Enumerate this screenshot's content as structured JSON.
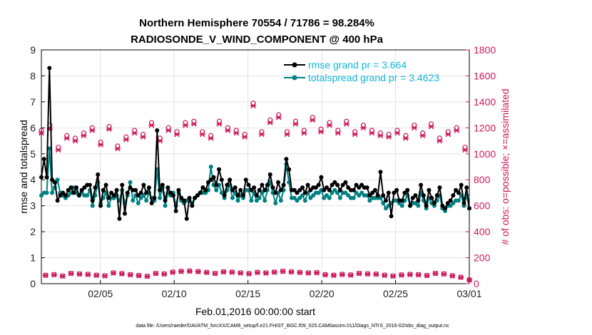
{
  "chart_data": {
    "type": "line",
    "title": "Northern Hemisphere 70554 / 71786 = 98.284%",
    "subtitle": "RADIOSONDE_V_WIND_COMPONENT @ 400 hPa",
    "xlabel": "Feb.01,2016 00:00:00 start",
    "ylabel": "rmse and totalspread",
    "ylabel_right": "# of obs: o=possible; ×=assimilated",
    "footnote": "data file: /Users/raeder/DAI/ATM_forcXX/CAM6_setup/f.e21.FHIST_BGC.f09_025.CAM6assim.011/Diags_NTrS_2016-02/obs_diag_output.nc",
    "x_unit": "day of February 2016 (1 = Feb 01)",
    "xlim": [
      1,
      30
    ],
    "ylim": [
      0,
      9
    ],
    "ylim_right": [
      0,
      1800
    ],
    "x_ticks": [
      5,
      10,
      15,
      20,
      25,
      30
    ],
    "x_tick_labels": [
      "02/05",
      "02/10",
      "02/15",
      "02/20",
      "02/25",
      "03/01"
    ],
    "y_ticks": [
      0,
      1,
      2,
      3,
      4,
      5,
      6,
      7,
      8,
      9
    ],
    "y_ticks_right": [
      0,
      200,
      400,
      600,
      800,
      1000,
      1200,
      1400,
      1600,
      1800
    ],
    "grid": true,
    "legend_position": "top-right",
    "series": [
      {
        "name": "rmse grand pr = 3.664",
        "color": "#000000",
        "axis": "left",
        "values": [
          4.1,
          4.8,
          4.1,
          8.3,
          4.0,
          3.9,
          3.2,
          3.4,
          3.5,
          3.4,
          3.6,
          3.7,
          3.5,
          3.7,
          3.4,
          3.6,
          3.7,
          3.8,
          3.8,
          3.2,
          3.7,
          4.2,
          3.0,
          3.6,
          3.8,
          3.3,
          3.5,
          3.4,
          3.6,
          2.5,
          3.8,
          2.7,
          3.5,
          3.7,
          3.6,
          3.6,
          3.4,
          3.5,
          3.8,
          3.5,
          3.7,
          3.1,
          3.3,
          5.9,
          3.6,
          3.8,
          3.2,
          3.7,
          3.5,
          3.4,
          2.8,
          3.6,
          3.3,
          3.2,
          2.5,
          3.3,
          3.0,
          3.3,
          3.4,
          3.5,
          3.7,
          3.6,
          3.9,
          4.0,
          4.1,
          3.8,
          4.4,
          4.0,
          3.4,
          3.8,
          4.0,
          3.6,
          3.7,
          3.4,
          3.6,
          3.4,
          4.0,
          3.8,
          3.6,
          3.7,
          3.4,
          3.6,
          3.8,
          3.6,
          3.8,
          4.2,
          3.7,
          3.5,
          3.9,
          3.6,
          3.8,
          4.8,
          4.4,
          3.6,
          3.6,
          3.5,
          3.6,
          3.7,
          3.5,
          3.8,
          3.6,
          3.7,
          3.7,
          3.8,
          4.1,
          3.6,
          3.7,
          3.6,
          3.8,
          3.9,
          3.8,
          3.6,
          3.8,
          3.9,
          3.7,
          3.6,
          3.6,
          3.8,
          3.7,
          3.8,
          3.7,
          3.7,
          3.4,
          3.5,
          3.6,
          3.4,
          4.3,
          3.4,
          3.2,
          3.5,
          2.6,
          3.5,
          3.6,
          3.2,
          3.2,
          3.5,
          3.6,
          3.0,
          3.3,
          3.4,
          3.2,
          3.8,
          3.4,
          3.0,
          3.6,
          3.3,
          3.1,
          3.4,
          3.7,
          3.0,
          2.9,
          3.1,
          3.2,
          3.4,
          3.6,
          3.5,
          3.8,
          3.1,
          3.7,
          2.9
        ]
      },
      {
        "name": "totalspread grand pr = 3.4623",
        "color": "#008080",
        "axis": "left",
        "values": [
          3.4,
          3.5,
          3.5,
          5.2,
          3.5,
          3.7,
          4.0,
          3.5,
          3.4,
          3.3,
          3.4,
          3.5,
          3.7,
          3.5,
          3.4,
          3.5,
          3.4,
          3.4,
          3.6,
          3.0,
          3.4,
          3.9,
          3.1,
          3.3,
          3.5,
          3.0,
          3.3,
          3.3,
          3.4,
          3.2,
          3.6,
          3.1,
          3.4,
          3.9,
          3.2,
          3.4,
          3.1,
          3.3,
          3.4,
          3.2,
          3.5,
          3.3,
          3.2,
          4.4,
          3.3,
          3.7,
          3.0,
          3.5,
          3.4,
          3.5,
          3.0,
          3.5,
          3.2,
          3.1,
          3.2,
          3.2,
          3.1,
          3.3,
          3.4,
          3.5,
          3.5,
          3.5,
          3.6,
          4.5,
          3.8,
          3.6,
          3.8,
          3.5,
          3.3,
          3.6,
          3.8,
          3.3,
          3.5,
          3.2,
          3.4,
          3.3,
          3.6,
          3.6,
          3.2,
          3.5,
          3.2,
          3.3,
          3.5,
          3.2,
          3.6,
          3.9,
          3.5,
          3.1,
          3.5,
          3.2,
          3.6,
          4.6,
          3.9,
          3.3,
          3.3,
          3.2,
          3.3,
          3.4,
          3.2,
          3.5,
          3.3,
          3.4,
          3.5,
          3.5,
          3.6,
          3.3,
          3.4,
          3.3,
          3.5,
          3.6,
          3.5,
          3.3,
          3.5,
          3.5,
          3.4,
          3.3,
          3.3,
          3.5,
          3.4,
          3.5,
          3.4,
          3.4,
          3.2,
          3.3,
          3.3,
          3.3,
          3.3,
          3.1,
          2.9,
          3.0,
          3.1,
          3.2,
          3.2,
          3.1,
          3.0,
          3.2,
          3.4,
          3.0,
          3.1,
          3.1,
          3.0,
          3.5,
          3.2,
          2.9,
          3.3,
          3.1,
          3.0,
          3.2,
          3.4,
          2.9,
          2.8,
          3.0,
          3.0,
          3.1,
          3.2,
          3.2,
          3.4,
          3.0,
          3.4,
          2.9
        ]
      },
      {
        "name": "possible obs (o)",
        "color": "#cc1a5a",
        "axis": "right",
        "marker": "o",
        "values": [
          1180,
          65,
          1220,
          70,
          1050,
          60,
          1140,
          80,
          1120,
          75,
          1160,
          72,
          1200,
          66,
          1090,
          62,
          1210,
          84,
          1060,
          78,
          1130,
          70,
          1180,
          64,
          1150,
          58,
          1240,
          80,
          1120,
          76,
          1200,
          90,
          1170,
          96,
          1240,
          98,
          1250,
          94,
          1170,
          88,
          1140,
          80,
          1250,
          92,
          1200,
          90,
          1180,
          84,
          1150,
          78,
          1390,
          88,
          1170,
          84,
          1260,
          90,
          1300,
          96,
          1170,
          92,
          1250,
          88,
          1180,
          84,
          1280,
          86,
          1190,
          70,
          1240,
          66,
          1180,
          72,
          1250,
          68,
          1170,
          80,
          1220,
          76,
          1180,
          74,
          1160,
          66,
          1150,
          60,
          1180,
          68,
          1140,
          72,
          1220,
          70,
          1160,
          64,
          1230,
          80,
          1120,
          76,
          1170,
          62,
          1200,
          50,
          1050,
          30
        ]
      },
      {
        "name": "assimilated obs (×)",
        "color": "#cc1a5a",
        "axis": "right",
        "marker": "x",
        "values": [
          1160,
          64,
          1190,
          68,
          1030,
          58,
          1120,
          78,
          1100,
          74,
          1140,
          70,
          1180,
          64,
          1070,
          60,
          1190,
          82,
          1040,
          76,
          1110,
          68,
          1160,
          62,
          1130,
          56,
          1220,
          78,
          1100,
          74,
          1180,
          88,
          1150,
          94,
          1220,
          96,
          1230,
          92,
          1150,
          86,
          1120,
          78,
          1230,
          90,
          1180,
          88,
          1160,
          82,
          1130,
          76,
          1370,
          86,
          1150,
          82,
          1240,
          88,
          1280,
          94,
          1150,
          90,
          1230,
          86,
          1160,
          82,
          1260,
          84,
          1170,
          68,
          1220,
          64,
          1160,
          70,
          1230,
          66,
          1150,
          78,
          1200,
          74,
          1160,
          72,
          1140,
          64,
          1130,
          58,
          1160,
          66,
          1120,
          70,
          1200,
          68,
          1140,
          62,
          1210,
          78,
          1100,
          74,
          1150,
          60,
          1180,
          48,
          1030,
          28
        ]
      }
    ]
  }
}
